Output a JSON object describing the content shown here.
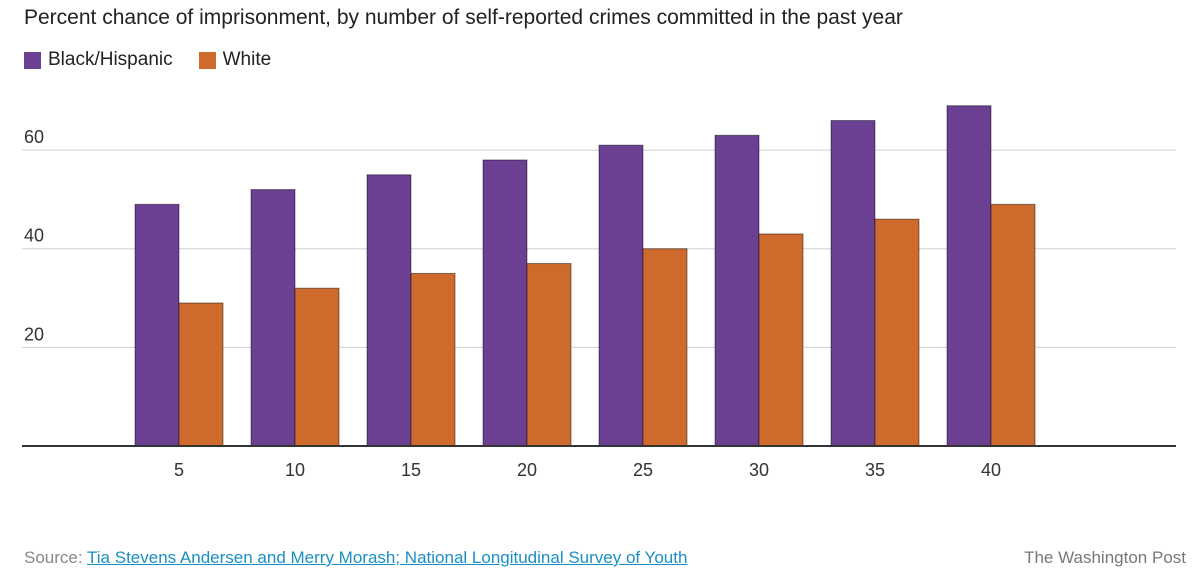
{
  "colors": {
    "black_hispanic": "#6b3f92",
    "white": "#cd6a2c",
    "grid": "#cfcfcf",
    "axis": "#333333"
  },
  "chart_data": {
    "type": "bar",
    "title": "Percent chance of imprisonment, by number of self-reported crimes committed in the past year",
    "categories": [
      "5",
      "10",
      "15",
      "20",
      "25",
      "30",
      "35",
      "40"
    ],
    "series": [
      {
        "name": "Black/Hispanic",
        "values": [
          49,
          52,
          55,
          58,
          61,
          63,
          66,
          69
        ]
      },
      {
        "name": "White",
        "values": [
          29,
          32,
          35,
          37,
          40,
          43,
          46,
          49
        ]
      }
    ],
    "yticks": [
      "20",
      "40",
      "60"
    ],
    "ylim": [
      0,
      73
    ],
    "xlabel": "",
    "ylabel": "",
    "grid": true,
    "legend": "top-left"
  },
  "footer": {
    "source_label": "Source:",
    "source_text": "Tia Stevens Andersen and Merry Morash; National Longitudinal Survey of Youth",
    "credit": "The Washington Post"
  }
}
